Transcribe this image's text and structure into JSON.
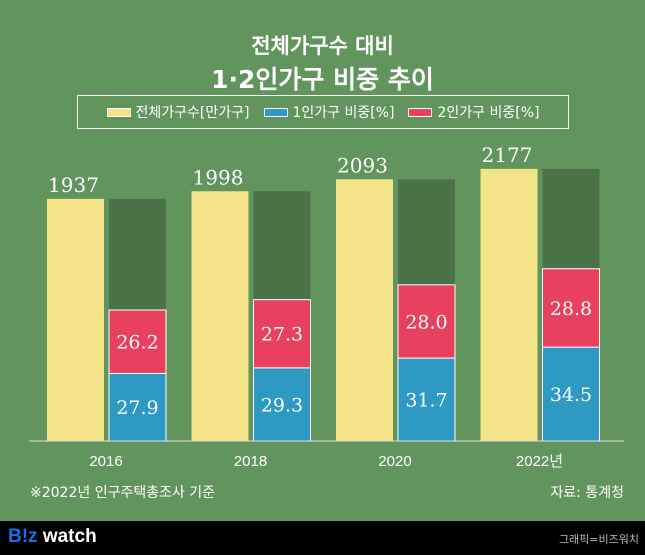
{
  "title_line1": "전체가구수 대비",
  "title_line2": "1·2인가구 비중 추이",
  "chart_data": {
    "type": "bar",
    "categories": [
      "2016",
      "2018",
      "2020",
      "2022년"
    ],
    "series": [
      {
        "name": "전체가구수[만가구]",
        "values": [
          1937,
          1998,
          2093,
          2177
        ],
        "color": "#f3e48a"
      },
      {
        "name": "1인가구 비중[%]",
        "values": [
          27.9,
          29.3,
          31.7,
          34.5
        ],
        "color": "#2e9ac4"
      },
      {
        "name": "2인가구 비중[%]",
        "values": [
          26.2,
          27.3,
          28.0,
          28.8
        ],
        "color": "#e8405f"
      }
    ],
    "remainder_color": "#4a7447",
    "legend": "top"
  },
  "note": "※2022년 인구주택총조사 기준",
  "source": "자료: 통계청",
  "footer": {
    "logo_b": "B!z",
    "logo_rest": " watch",
    "credit": "그래픽=비즈워치"
  }
}
